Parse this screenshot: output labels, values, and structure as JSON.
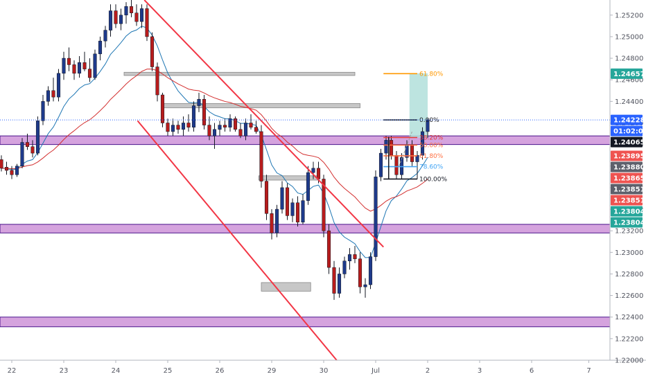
{
  "chart_data": {
    "type": "candlestick",
    "title": "",
    "y_ticks": [
      "1.25200",
      "1.25000",
      "1.24800",
      "1.24600",
      "1.24400",
      "1.24200",
      "1.24000",
      "1.23800",
      "1.23600",
      "1.23400",
      "1.23200",
      "1.23000",
      "1.22800",
      "1.22600",
      "1.22400",
      "1.22200",
      "1.22000"
    ],
    "ylim": [
      1.22,
      1.2534
    ],
    "x_ticks": [
      {
        "label": "22",
        "session": 2
      },
      {
        "label": "23",
        "session": 12
      },
      {
        "label": "24",
        "session": 22
      },
      {
        "label": "25",
        "session": 32
      },
      {
        "label": "26",
        "session": 42
      },
      {
        "label": "29",
        "session": 52
      },
      {
        "label": "30",
        "session": 62
      },
      {
        "label": "Jul",
        "session": 72
      },
      {
        "label": "2",
        "session": 82
      },
      {
        "label": "3",
        "session": 92
      },
      {
        "label": "6",
        "session": 102
      },
      {
        "label": "7",
        "session": 113
      }
    ],
    "price_tags": [
      {
        "value": "1.24657",
        "color": "#26a69a"
      },
      {
        "value": "1.24228",
        "color": "#2962ff"
      },
      {
        "value": "01:02:03",
        "color": "#2962ff",
        "countdown": true
      },
      {
        "value": "1.24065",
        "color": "#131722"
      },
      {
        "value": "1.23895",
        "color": "#ef5350"
      },
      {
        "value": "1.23880",
        "color": "#5d606b"
      },
      {
        "value": "1.23865",
        "color": "#ef5350"
      },
      {
        "value": "1.23851",
        "color": "#5d606b"
      },
      {
        "value": "1.23851",
        "color": "#ef5350"
      },
      {
        "value": "1.23804",
        "color": "#26a69a"
      },
      {
        "value": "1.23804",
        "color": "#26a69a"
      }
    ],
    "fib_levels": [
      {
        "label": "61.80%",
        "value": 1.24657,
        "color": "#ff9800"
      },
      {
        "label": "0.00%",
        "value": 1.24228,
        "color": "#131722"
      },
      {
        "label": "38.20%",
        "value": 1.24065,
        "color": "#e53935"
      },
      {
        "label": "50.00%",
        "value": 1.23995,
        "color": "#ff7043"
      },
      {
        "label": "61.80%",
        "value": 1.23895,
        "color": "#ff7043"
      },
      {
        "label": "78.60%",
        "value": 1.23795,
        "color": "#42a5f5"
      },
      {
        "label": "100.00%",
        "value": 1.2368,
        "color": "#131722"
      }
    ],
    "zones_purple": [
      {
        "from": 1.24,
        "to": 1.2408
      },
      {
        "from": 1.2318,
        "to": 1.2326
      },
      {
        "from": 1.2231,
        "to": 1.224
      }
    ],
    "zones_gray": [
      {
        "from": 1.2464,
        "to": 1.2467,
        "x0": 23.6,
        "x1": 68
      },
      {
        "from": 1.2434,
        "to": 1.2438,
        "x0": 31,
        "x1": 69
      },
      {
        "from": 1.2367,
        "to": 1.2371,
        "x0": 49.5,
        "x1": 61
      },
      {
        "from": 1.2264,
        "to": 1.2272,
        "x0": 50,
        "x1": 59.5
      }
    ],
    "channel_lines": [
      {
        "x0": 27.5,
        "y0": 1.2534,
        "x1": 73.5,
        "y1": 1.2305
      },
      {
        "x0": 26.2,
        "y0": 1.2422,
        "x1": 64.5,
        "y1": 1.22
      }
    ],
    "target_box": {
      "x0": 78.5,
      "x1": 82,
      "from": 1.24065,
      "to": 1.2466,
      "color": "#b2dfdb"
    },
    "current_price": 1.24228,
    "candles": [
      [
        1.2386,
        1.239,
        1.2375,
        1.2378
      ],
      [
        1.2379,
        1.2384,
        1.2372,
        1.2376
      ],
      [
        1.2376,
        1.238,
        1.2368,
        1.2372
      ],
      [
        1.2372,
        1.2382,
        1.237,
        1.238
      ],
      [
        1.238,
        1.2406,
        1.2378,
        1.2402
      ],
      [
        1.2402,
        1.241,
        1.2395,
        1.2398
      ],
      [
        1.2398,
        1.2404,
        1.2388,
        1.2392
      ],
      [
        1.2392,
        1.2426,
        1.239,
        1.2422
      ],
      [
        1.2422,
        1.2446,
        1.2418,
        1.244
      ],
      [
        1.244,
        1.2454,
        1.2436,
        1.245
      ],
      [
        1.245,
        1.2462,
        1.244,
        1.2444
      ],
      [
        1.2444,
        1.247,
        1.244,
        1.2466
      ],
      [
        1.2466,
        1.2486,
        1.246,
        1.248
      ],
      [
        1.248,
        1.249,
        1.2468,
        1.2474
      ],
      [
        1.2474,
        1.2478,
        1.246,
        1.2466
      ],
      [
        1.2466,
        1.2482,
        1.2462,
        1.2476
      ],
      [
        1.2476,
        1.2486,
        1.2468,
        1.247
      ],
      [
        1.247,
        1.248,
        1.2458,
        1.2462
      ],
      [
        1.2462,
        1.2488,
        1.246,
        1.2484
      ],
      [
        1.2484,
        1.25,
        1.2478,
        1.2496
      ],
      [
        1.2496,
        1.251,
        1.249,
        1.2506
      ],
      [
        1.2506,
        1.253,
        1.25,
        1.2524
      ],
      [
        1.2524,
        1.253,
        1.2508,
        1.2512
      ],
      [
        1.2512,
        1.2526,
        1.2506,
        1.252
      ],
      [
        1.252,
        1.2532,
        1.2512,
        1.2528
      ],
      [
        1.2528,
        1.2534,
        1.2518,
        1.2522
      ],
      [
        1.2522,
        1.253,
        1.251,
        1.2514
      ],
      [
        1.2514,
        1.253,
        1.2508,
        1.2526
      ],
      [
        1.2526,
        1.253,
        1.2496,
        1.25
      ],
      [
        1.25,
        1.2504,
        1.2468,
        1.2472
      ],
      [
        1.2472,
        1.2476,
        1.244,
        1.2446
      ],
      [
        1.2446,
        1.2448,
        1.2416,
        1.242
      ],
      [
        1.242,
        1.2424,
        1.2408,
        1.2412
      ],
      [
        1.2412,
        1.2424,
        1.2408,
        1.2418
      ],
      [
        1.2418,
        1.2422,
        1.241,
        1.2414
      ],
      [
        1.2414,
        1.2426,
        1.2408,
        1.242
      ],
      [
        1.242,
        1.2428,
        1.2412,
        1.2416
      ],
      [
        1.2416,
        1.244,
        1.2412,
        1.2436
      ],
      [
        1.2436,
        1.2448,
        1.243,
        1.2442
      ],
      [
        1.2442,
        1.2446,
        1.2414,
        1.2418
      ],
      [
        1.2418,
        1.2426,
        1.2404,
        1.2408
      ],
      [
        1.2408,
        1.242,
        1.2396,
        1.2414
      ],
      [
        1.2414,
        1.2422,
        1.2408,
        1.2418
      ],
      [
        1.2418,
        1.2424,
        1.2412,
        1.2416
      ],
      [
        1.2416,
        1.2428,
        1.2412,
        1.2424
      ],
      [
        1.2424,
        1.2426,
        1.2412,
        1.2414
      ],
      [
        1.2414,
        1.242,
        1.2406,
        1.2408
      ],
      [
        1.2408,
        1.2424,
        1.2404,
        1.242
      ],
      [
        1.242,
        1.2428,
        1.2414,
        1.2416
      ],
      [
        1.2416,
        1.2422,
        1.241,
        1.2412
      ],
      [
        1.2412,
        1.2418,
        1.236,
        1.2366
      ],
      [
        1.2366,
        1.2372,
        1.233,
        1.2336
      ],
      [
        1.2336,
        1.234,
        1.2312,
        1.2318
      ],
      [
        1.2318,
        1.2344,
        1.2314,
        1.234
      ],
      [
        1.234,
        1.2366,
        1.2336,
        1.236
      ],
      [
        1.236,
        1.2364,
        1.233,
        1.2334
      ],
      [
        1.2334,
        1.235,
        1.2328,
        1.2346
      ],
      [
        1.2346,
        1.2352,
        1.2324,
        1.2328
      ],
      [
        1.2328,
        1.2354,
        1.2326,
        1.2348
      ],
      [
        1.2348,
        1.238,
        1.2344,
        1.2374
      ],
      [
        1.2374,
        1.2384,
        1.2368,
        1.2378
      ],
      [
        1.2378,
        1.2384,
        1.2364,
        1.2368
      ],
      [
        1.2368,
        1.2372,
        1.2314,
        1.232
      ],
      [
        1.232,
        1.2326,
        1.228,
        1.2286
      ],
      [
        1.2286,
        1.2292,
        1.2256,
        1.2262
      ],
      [
        1.2262,
        1.2286,
        1.2258,
        1.228
      ],
      [
        1.228,
        1.2296,
        1.2276,
        1.2292
      ],
      [
        1.2292,
        1.2304,
        1.2284,
        1.2298
      ],
      [
        1.2298,
        1.2306,
        1.229,
        1.2294
      ],
      [
        1.2294,
        1.23,
        1.2262,
        1.2268
      ],
      [
        1.2268,
        1.2276,
        1.2258,
        1.227
      ],
      [
        1.227,
        1.23,
        1.2266,
        1.2296
      ],
      [
        1.2296,
        1.2376,
        1.2292,
        1.237
      ],
      [
        1.237,
        1.2396,
        1.2366,
        1.2392
      ],
      [
        1.2392,
        1.2408,
        1.2386,
        1.2404
      ],
      [
        1.2404,
        1.2408,
        1.2386,
        1.239
      ],
      [
        1.239,
        1.2394,
        1.2368,
        1.2372
      ],
      [
        1.2372,
        1.2392,
        1.2368,
        1.2388
      ],
      [
        1.2388,
        1.2404,
        1.2384,
        1.24
      ],
      [
        1.24,
        1.2404,
        1.238,
        1.2384
      ],
      [
        1.2384,
        1.2394,
        1.2368,
        1.239
      ],
      [
        1.239,
        1.2416,
        1.2386,
        1.2412
      ],
      [
        1.2412,
        1.2424,
        1.2406,
        1.24228
      ]
    ]
  }
}
